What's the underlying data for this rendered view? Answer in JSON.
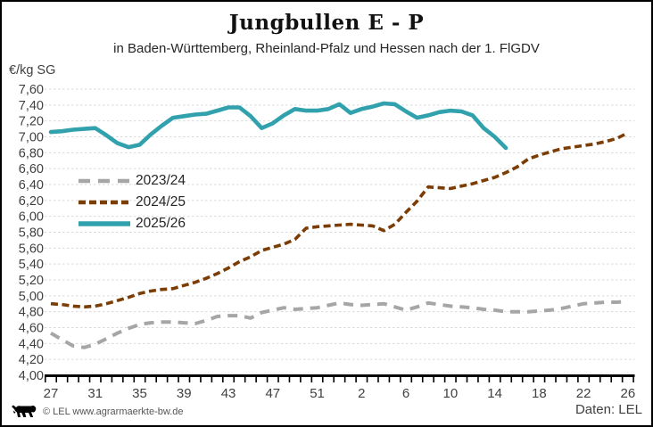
{
  "header": {
    "title": "Jungbullen E - P",
    "subtitle": "in Baden-Württemberg, Rheinland-Pfalz und Hessen nach der 1. FlGDV"
  },
  "chart_data": {
    "type": "line",
    "title": "Jungbullen E - P",
    "subtitle": "in Baden-Württemberg, Rheinland-Pfalz und Hessen nach der 1. FlGDV",
    "ylabel": "€/kg SG",
    "xlabel": "",
    "unit": "€/kg SG",
    "ylim": [
      4.0,
      7.6
    ],
    "ytick_step": 0.2,
    "grid": "horizontal-dashed-light-gray",
    "legend_position": "upper-left-inside",
    "ytick_labels": [
      "7,60",
      "7,40",
      "7,20",
      "7,00",
      "6,80",
      "6,60",
      "6,40",
      "6,20",
      "6,00",
      "5,80",
      "5,60",
      "5,40",
      "5,20",
      "5,00",
      "4,80",
      "4,60",
      "4,40",
      "4,20",
      "4,00"
    ],
    "xtick_labels": [
      "27",
      "31",
      "35",
      "39",
      "43",
      "47",
      "51",
      "2",
      "6",
      "10",
      "14",
      "18",
      "22",
      "26"
    ],
    "xtick_positions": [
      0,
      4,
      8,
      12,
      16,
      20,
      24,
      28,
      32,
      36,
      40,
      44,
      48,
      52
    ],
    "x_axis_note": "calendar weeks 27..53 then 1..26, one slot per week (53 slots)",
    "n_slots": 53,
    "series": [
      {
        "name": "2023/24",
        "color": "#a6a6a6",
        "style": "long-dash",
        "weeks": [
          27,
          28,
          29,
          30,
          31,
          32,
          33,
          34,
          35,
          36,
          37,
          38,
          39,
          40,
          41,
          42,
          43,
          44,
          45,
          46,
          47,
          48,
          49,
          50,
          51,
          52,
          53,
          1,
          2,
          3,
          4,
          5,
          6,
          7,
          8,
          9,
          10,
          11,
          12,
          13,
          14,
          15,
          16,
          17,
          18,
          19,
          20,
          21,
          22,
          23,
          24,
          25,
          26
        ],
        "values": [
          4.53,
          4.45,
          4.37,
          4.35,
          4.39,
          4.46,
          4.53,
          4.59,
          4.64,
          4.66,
          4.67,
          4.67,
          4.66,
          4.65,
          4.69,
          4.74,
          4.75,
          4.75,
          4.72,
          4.79,
          4.82,
          4.85,
          4.83,
          4.84,
          4.85,
          4.88,
          4.91,
          4.89,
          4.88,
          4.89,
          4.9,
          4.86,
          4.82,
          4.86,
          4.91,
          4.89,
          4.87,
          4.86,
          4.85,
          4.83,
          4.82,
          4.8,
          4.8,
          4.8,
          4.81,
          4.82,
          4.84,
          4.87,
          4.9,
          4.91,
          4.92,
          4.92,
          4.93
        ]
      },
      {
        "name": "2024/25",
        "color": "#7c3d05",
        "style": "short-dash",
        "weeks": [
          27,
          28,
          29,
          30,
          31,
          32,
          33,
          34,
          35,
          36,
          37,
          38,
          39,
          40,
          41,
          42,
          43,
          44,
          45,
          46,
          47,
          48,
          49,
          50,
          51,
          52,
          53,
          1,
          2,
          3,
          4,
          5,
          6,
          7,
          8,
          9,
          10,
          11,
          12,
          13,
          14,
          15,
          16,
          17,
          18,
          19,
          20,
          21,
          22,
          23,
          24,
          25,
          26
        ],
        "values": [
          4.9,
          4.89,
          4.87,
          4.86,
          4.87,
          4.9,
          4.94,
          4.98,
          5.03,
          5.06,
          5.08,
          5.09,
          5.13,
          5.17,
          5.22,
          5.28,
          5.35,
          5.43,
          5.49,
          5.57,
          5.61,
          5.65,
          5.71,
          5.85,
          5.87,
          5.88,
          5.89,
          5.9,
          5.89,
          5.88,
          5.82,
          5.9,
          6.05,
          6.19,
          6.37,
          6.36,
          6.35,
          6.38,
          6.41,
          6.45,
          6.49,
          6.55,
          6.62,
          6.72,
          6.77,
          6.81,
          6.85,
          6.87,
          6.89,
          6.91,
          6.94,
          6.98,
          7.05
        ]
      },
      {
        "name": "2025/26",
        "color": "#31a1ad",
        "style": "solid",
        "weeks": [
          27,
          28,
          29,
          30,
          31,
          32,
          33,
          34,
          35,
          36,
          37,
          38,
          39,
          40,
          41,
          42,
          43,
          44,
          45,
          46,
          47,
          48,
          49,
          50,
          51,
          52,
          53,
          1,
          2,
          3,
          4,
          5,
          6,
          7,
          8,
          9,
          10,
          11,
          12,
          13,
          14,
          15
        ],
        "values": [
          7.06,
          7.07,
          7.09,
          7.1,
          7.11,
          7.02,
          6.92,
          6.87,
          6.9,
          7.03,
          7.14,
          7.24,
          7.26,
          7.28,
          7.29,
          7.33,
          7.37,
          7.37,
          7.26,
          7.11,
          7.17,
          7.27,
          7.35,
          7.33,
          7.33,
          7.35,
          7.41,
          7.3,
          7.35,
          7.38,
          7.42,
          7.41,
          7.32,
          7.24,
          7.27,
          7.31,
          7.33,
          7.32,
          7.27,
          7.11,
          7.0,
          6.86
        ]
      }
    ]
  },
  "footer": {
    "copyright": "© LEL www.agrarmaerkte-bw.de",
    "source": "Daten: LEL",
    "logo": "bw-lion-logo"
  },
  "colors": {
    "series_2023_24": "#a6a6a6",
    "series_2024_25": "#7c3d05",
    "series_2025_26": "#31a1ad",
    "gridline": "#d9d9d9",
    "axis": "#000000",
    "tick_label": "#404040",
    "frame_border": "#000000"
  }
}
